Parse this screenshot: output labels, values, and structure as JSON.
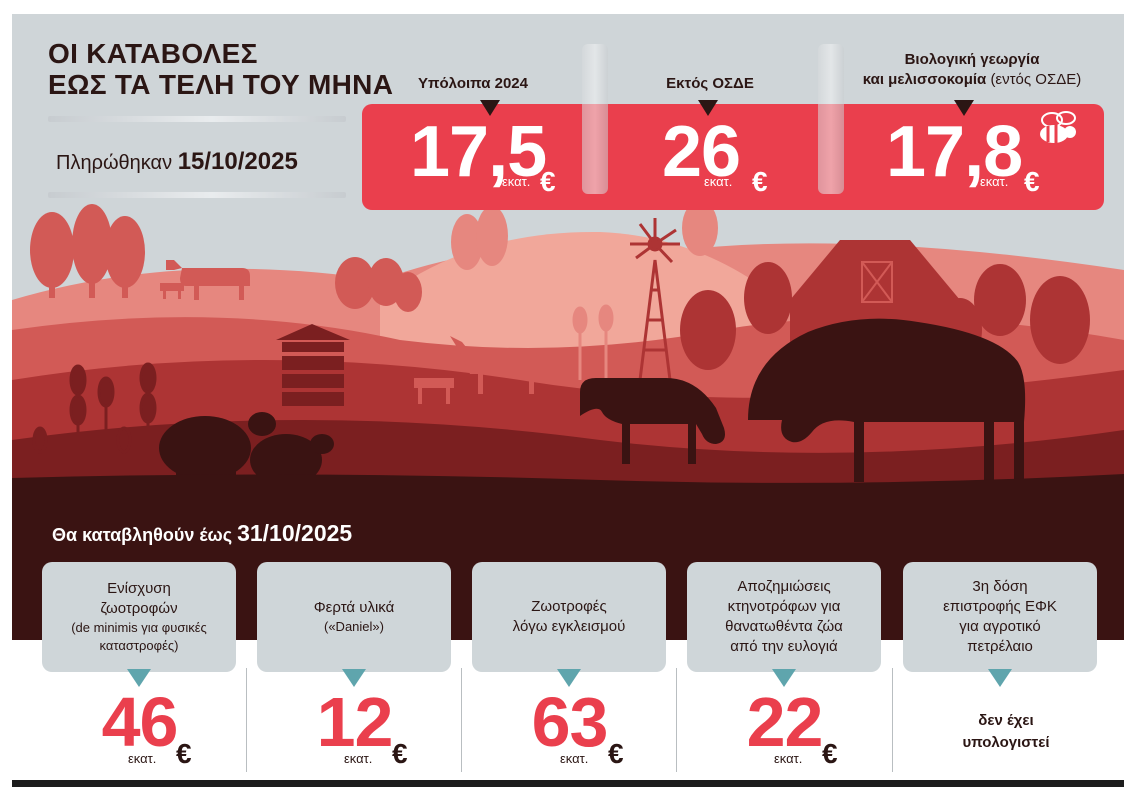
{
  "header": {
    "title_line1": "ΟΙ ΚΑΤΑΒΟΛΕΣ",
    "title_line2": "ΕΩΣ ΤΑ ΤΕΛΗ ΤΟΥ ΜΗΝΑ",
    "paid_label": "Πληρώθηκαν",
    "paid_date": "15/10/2025"
  },
  "top_panels": [
    {
      "label": "Υπόλοιπα 2024",
      "label_extra": "",
      "value": "17,5",
      "unit": "εκατ.",
      "currency": "€"
    },
    {
      "label": "Εκτός ΟΣΔΕ",
      "label_extra": "",
      "value": "26",
      "unit": "εκατ.",
      "currency": "€"
    },
    {
      "label_line1": "Βιολογική γεωργία",
      "label": "και μελισσοκομία",
      "label_extra": "(εντός ΟΣΔΕ)",
      "value": "17,8",
      "unit": "εκατ.",
      "currency": "€"
    }
  ],
  "bottom": {
    "due_label": "Θα καταβληθούν έως",
    "due_date": "31/10/2025",
    "items": [
      {
        "line1": "Ενίσχυση",
        "line2": "ζωοτροφών",
        "small": "(de minimis για φυσικές καταστροφές)",
        "value": "46",
        "unit": "εκατ.",
        "currency": "€"
      },
      {
        "line1": "Φερτά υλικά",
        "line2": "",
        "small": "(«Daniel»)",
        "value": "12",
        "unit": "εκατ.",
        "currency": "€"
      },
      {
        "line1": "Ζωοτροφές",
        "line2": "λόγω εγκλεισμού",
        "small": "",
        "value": "63",
        "unit": "εκατ.",
        "currency": "€"
      },
      {
        "line1": "Αποζημιώσεις",
        "line2": "κτηνοτρόφων για",
        "line3": "θανατωθέντα ζώα",
        "line4": "από την ευλογιά",
        "small": "",
        "value": "22",
        "unit": "εκατ.",
        "currency": "€"
      },
      {
        "line1": "3η δόση",
        "line2": "επιστροφής ΕΦΚ",
        "line3": "για αγροτικό",
        "line4": "πετρέλαιο",
        "small": "",
        "note1": "δεν έχει",
        "note2": "υπολογιστεί"
      }
    ]
  },
  "colors": {
    "accent_red": "#ea3f4d",
    "dark_brown": "#3a1312",
    "card_bg": "#cfd6d9",
    "teal_marker": "#5fa5ad",
    "sky": "#cfd5d8"
  },
  "icons": [
    "bee-icon",
    "windmill-icon",
    "barn-icon",
    "cow-icon",
    "sheep-icon",
    "goat-icon",
    "beehive-icon",
    "wheat-icon",
    "tree-icon"
  ]
}
